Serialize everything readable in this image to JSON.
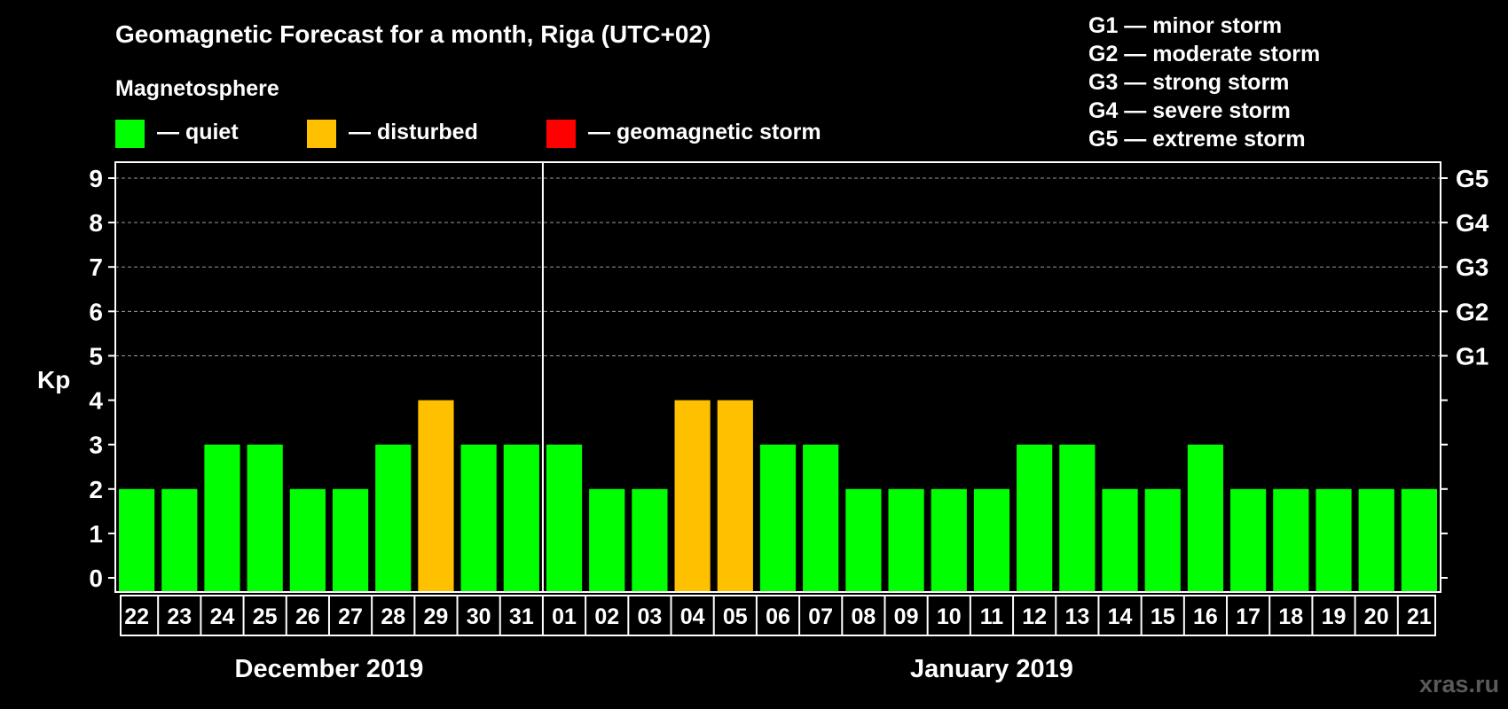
{
  "chart_data": {
    "type": "bar",
    "title": "Geomagnetic Forecast for a month, Riga (UTC+02)",
    "legend_heading": "Magnetosphere",
    "legend": [
      {
        "key": "quiet",
        "label": "— quiet",
        "color": "#00ff00"
      },
      {
        "key": "disturbed",
        "label": "— disturbed",
        "color": "#ffc000"
      },
      {
        "key": "storm",
        "label": "— geomagnetic storm",
        "color": "#ff0000"
      }
    ],
    "storm_scale": [
      "G1 — minor storm",
      "G2 — moderate storm",
      "G3 — strong storm",
      "G4 — severe storm",
      "G5 — extreme storm"
    ],
    "ylabel": "Kp",
    "ylim": [
      0,
      9
    ],
    "yticks": [
      "0",
      "1",
      "2",
      "3",
      "4",
      "5",
      "6",
      "7",
      "8",
      "9"
    ],
    "right_ticks": [
      {
        "kp": 5,
        "label": "G1"
      },
      {
        "kp": 6,
        "label": "G2"
      },
      {
        "kp": 7,
        "label": "G3"
      },
      {
        "kp": 8,
        "label": "G4"
      },
      {
        "kp": 9,
        "label": "G5"
      }
    ],
    "categories": [
      "22",
      "23",
      "24",
      "25",
      "26",
      "27",
      "28",
      "29",
      "30",
      "31",
      "01",
      "02",
      "03",
      "04",
      "05",
      "06",
      "07",
      "08",
      "09",
      "10",
      "11",
      "12",
      "13",
      "14",
      "15",
      "16",
      "17",
      "18",
      "19",
      "20",
      "21"
    ],
    "values": [
      2,
      2,
      3,
      3,
      2,
      2,
      3,
      4,
      3,
      3,
      3,
      2,
      2,
      4,
      4,
      3,
      3,
      2,
      2,
      2,
      2,
      3,
      3,
      2,
      2,
      3,
      2,
      2,
      2,
      2,
      2
    ],
    "months": [
      {
        "label": "December 2019",
        "from": 0,
        "to": 9
      },
      {
        "label": "January 2019",
        "from": 10,
        "to": 30
      }
    ],
    "month_divider_after_index": 9,
    "disturbed_threshold": 4,
    "storm_threshold": 5
  },
  "watermark": "xras.ru"
}
